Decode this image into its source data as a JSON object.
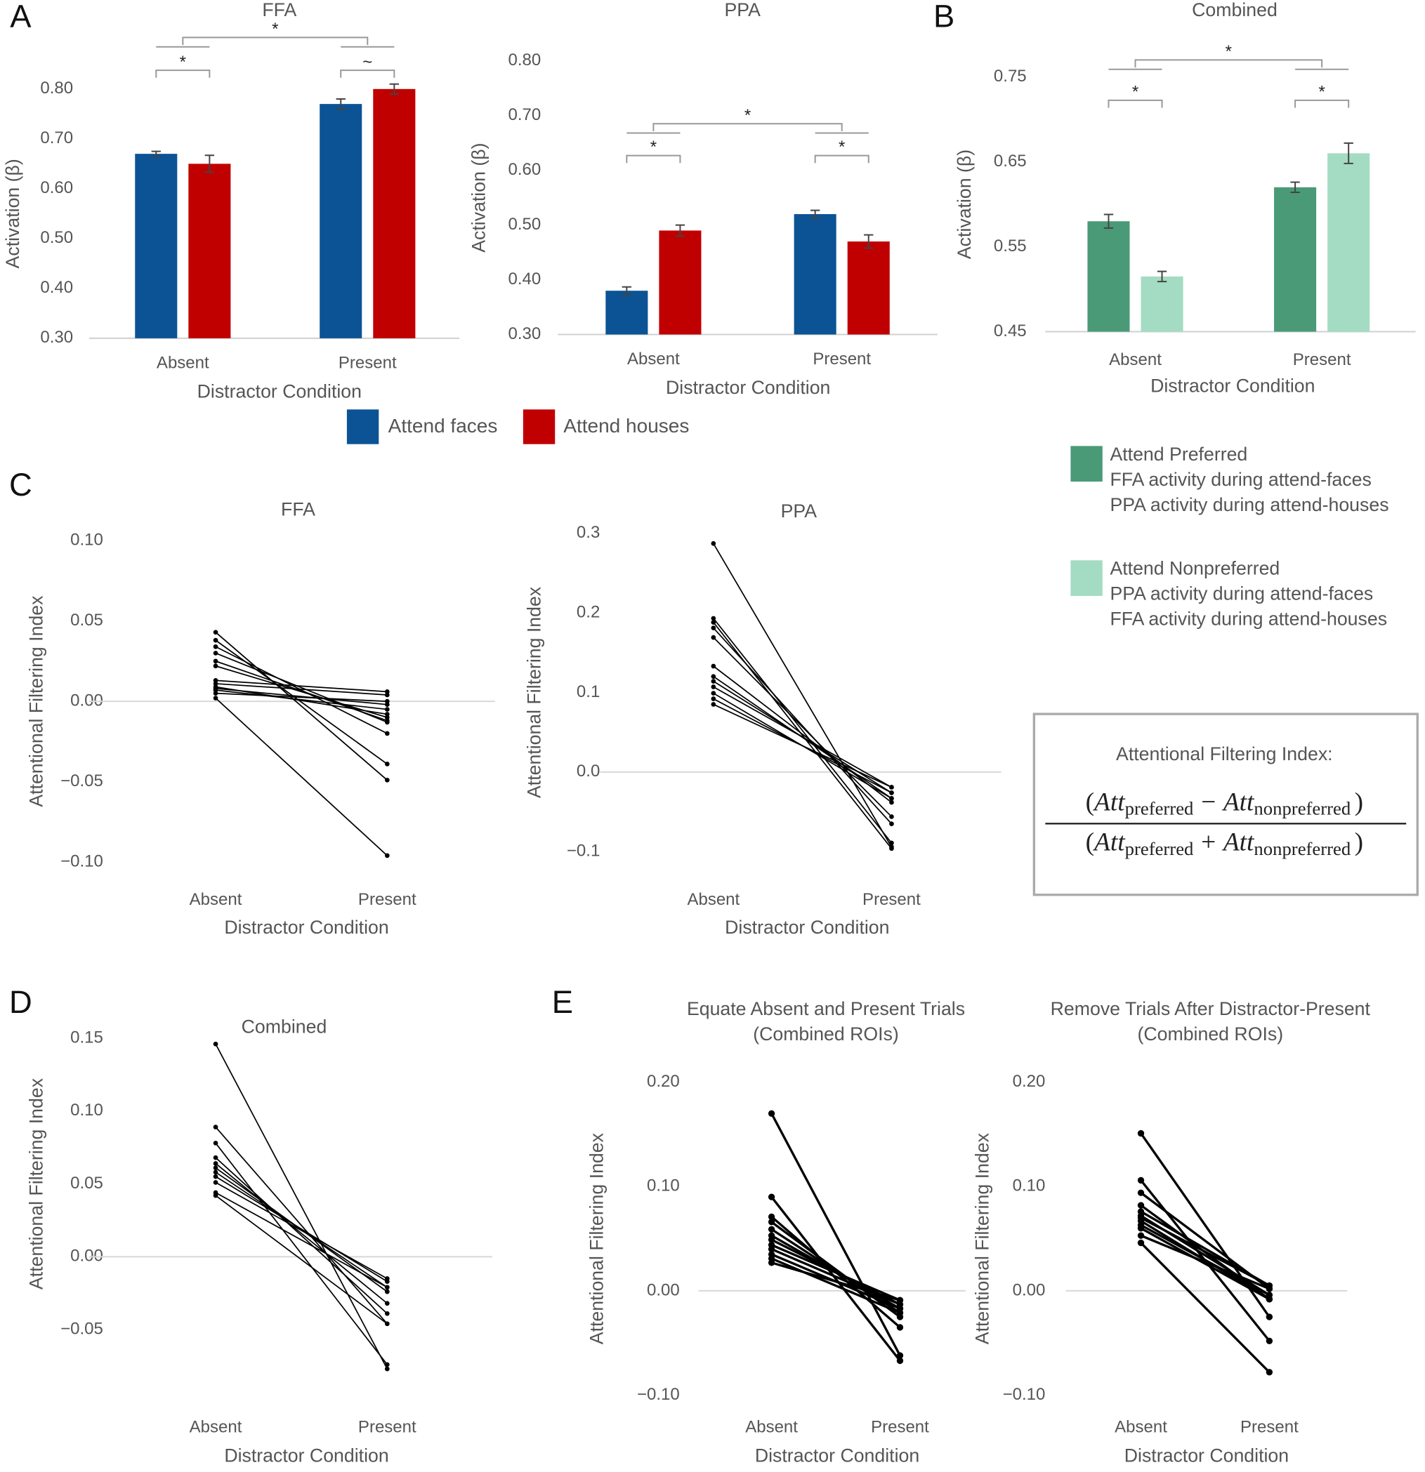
{
  "panel_labels": [
    "A",
    "B",
    "C",
    "D",
    "E"
  ],
  "chart_data": [
    {
      "type": "bar",
      "title": "FFA",
      "y_label": "Activation (β)",
      "x_label": "Distractor Condition",
      "categories": [
        "Absent",
        "Present"
      ],
      "series": [
        {
          "name": "Attend faces",
          "color": "#0b5394",
          "values": [
            0.67,
            0.77
          ],
          "errors": [
            0.005,
            0.01
          ]
        },
        {
          "name": "Attend houses",
          "color": "#c00000",
          "values": [
            0.65,
            0.8
          ],
          "errors": [
            0.017,
            0.01
          ]
        }
      ],
      "ylim": [
        0.3,
        0.8
      ],
      "yticks": [
        {
          "value": 0.3,
          "label": "0.30"
        },
        {
          "value": 0.4,
          "label": "0.40"
        },
        {
          "value": 0.5,
          "label": "0.50"
        },
        {
          "value": 0.6,
          "label": "0.60"
        },
        {
          "value": 0.7,
          "label": "0.70"
        },
        {
          "value": 0.8,
          "label": "0.80"
        }
      ],
      "annotations": [
        "*",
        "*",
        "~"
      ]
    },
    {
      "type": "bar",
      "title": "PPA",
      "y_label": "Activation (β)",
      "x_label": "Distractor Condition",
      "categories": [
        "Absent",
        "Present"
      ],
      "series": [
        {
          "color": "#0b5394",
          "values": [
            0.38,
            0.52
          ],
          "errors": [
            0.007,
            0.007
          ]
        },
        {
          "color": "#c00000",
          "values": [
            0.49,
            0.47
          ],
          "errors": [
            0.01,
            0.012
          ]
        }
      ],
      "ylim": [
        0.3,
        0.8
      ],
      "yticks": [
        {
          "value": 0.3,
          "label": "0.30"
        },
        {
          "value": 0.4,
          "label": "0.40"
        },
        {
          "value": 0.5,
          "label": "0.50"
        },
        {
          "value": 0.6,
          "label": "0.60"
        },
        {
          "value": 0.7,
          "label": "0.70"
        },
        {
          "value": 0.8,
          "label": "0.80"
        }
      ],
      "annotations": [
        "*",
        "*",
        "*"
      ]
    },
    {
      "type": "bar",
      "title": "Combined",
      "y_label": "Activation (β)",
      "x_label": "Distractor Condition",
      "categories": [
        "Absent",
        "Present"
      ],
      "series": [
        {
          "name": "Attend Preferred",
          "notes": [
            "FFA activity during attend-faces",
            "PPA activity during attend-houses"
          ],
          "color": "#4a9a78",
          "values": [
            0.58,
            0.62
          ],
          "errors": [
            0.008,
            0.006
          ]
        },
        {
          "name": "Attend Nonpreferred",
          "notes": [
            "PPA activity during attend-faces",
            "FFA activity during attend-houses"
          ],
          "color": "#a3dcc2",
          "values": [
            0.515,
            0.66
          ],
          "errors": [
            0.006,
            0.012
          ]
        }
      ],
      "ylim": [
        0.45,
        0.75
      ],
      "yticks": [
        {
          "value": 0.45,
          "label": "0.45"
        },
        {
          "value": 0.55,
          "label": "0.55"
        },
        {
          "value": 0.65,
          "label": "0.65"
        },
        {
          "value": 0.75,
          "label": "0.75"
        }
      ],
      "annotations": [
        "*",
        "*",
        "*"
      ]
    },
    {
      "type": "line",
      "title": "FFA",
      "y_label": "Attentional Filtering Index",
      "x_label": "Distractor Condition",
      "categories": [
        "Absent",
        "Present"
      ],
      "color": "#000000",
      "series": [
        {
          "values": [
            0.043,
            -0.049
          ]
        },
        {
          "values": [
            0.038,
            -0.039
          ]
        },
        {
          "values": [
            0.034,
            -0.02
          ]
        },
        {
          "values": [
            0.03,
            -0.013
          ]
        },
        {
          "values": [
            0.025,
            -0.012
          ]
        },
        {
          "values": [
            0.022,
            -0.01
          ]
        },
        {
          "values": [
            0.013,
            0.006
          ]
        },
        {
          "values": [
            0.011,
            0.004
          ]
        },
        {
          "values": [
            0.009,
            -0.008
          ]
        },
        {
          "values": [
            0.007,
            -0.005
          ]
        },
        {
          "values": [
            0.005,
            0.0
          ]
        },
        {
          "values": [
            0.008,
            -0.002
          ]
        },
        {
          "values": [
            0.002,
            -0.096
          ]
        }
      ],
      "ylim": [
        -0.1,
        0.1
      ],
      "yticks": [
        {
          "value": -0.1,
          "label": "−0.10"
        },
        {
          "value": -0.05,
          "label": "−0.05"
        },
        {
          "value": 0,
          "label": "0.00"
        },
        {
          "value": 0.05,
          "label": "0.05"
        },
        {
          "value": 0.1,
          "label": "0.10"
        }
      ],
      "zero_line": true
    },
    {
      "type": "line",
      "title": "PPA",
      "y_label": "Attentional Filtering Index",
      "x_label": "Distractor Condition",
      "categories": [
        "Absent",
        "Present"
      ],
      "color": "#000000",
      "series": [
        {
          "values": [
            0.287,
            -0.094
          ]
        },
        {
          "values": [
            0.193,
            -0.089
          ]
        },
        {
          "values": [
            0.188,
            -0.096
          ]
        },
        {
          "values": [
            0.181,
            -0.065
          ]
        },
        {
          "values": [
            0.169,
            -0.056
          ]
        },
        {
          "values": [
            0.133,
            -0.038
          ]
        },
        {
          "values": [
            0.12,
            -0.033
          ]
        },
        {
          "values": [
            0.114,
            -0.026
          ]
        },
        {
          "values": [
            0.107,
            -0.019
          ]
        },
        {
          "values": [
            0.099,
            -0.033
          ]
        },
        {
          "values": [
            0.092,
            -0.026
          ]
        },
        {
          "values": [
            0.085,
            -0.019
          ]
        }
      ],
      "ylim": [
        -0.1,
        0.3
      ],
      "yticks": [
        {
          "value": -0.1,
          "label": "−0.1"
        },
        {
          "value": 0,
          "label": "0.0"
        },
        0.1,
        0.2,
        0.3
      ],
      "zero_line": true
    },
    {
      "type": "line",
      "title": "Combined",
      "y_label": "Attentional Filtering Index",
      "x_label": "Distractor Condition",
      "categories": [
        "Absent",
        "Present"
      ],
      "color": "#000000",
      "series": [
        {
          "values": [
            0.146,
            -0.077
          ]
        },
        {
          "values": [
            0.089,
            -0.046
          ]
        },
        {
          "values": [
            0.078,
            -0.074
          ]
        },
        {
          "values": [
            0.068,
            -0.039
          ]
        },
        {
          "values": [
            0.064,
            -0.032
          ]
        },
        {
          "values": [
            0.061,
            -0.024
          ]
        },
        {
          "values": [
            0.058,
            -0.021
          ]
        },
        {
          "values": [
            0.055,
            -0.017
          ]
        },
        {
          "values": [
            0.051,
            -0.015
          ]
        },
        {
          "values": [
            0.044,
            -0.021
          ]
        },
        {
          "values": [
            0.042,
            -0.046
          ]
        }
      ],
      "ylim": [
        -0.05,
        0.15
      ],
      "yticks": [
        {
          "value": -0.05,
          "label": "−0.05"
        },
        {
          "value": 0,
          "label": "0.00"
        },
        {
          "value": 0.05,
          "label": "0.05"
        },
        {
          "value": 0.1,
          "label": "0.10"
        },
        {
          "value": 0.15,
          "label": "0.15"
        }
      ],
      "zero_line": true
    },
    {
      "type": "line",
      "title": [
        "Equate Absent and Present Trials",
        "(Combined ROIs)"
      ],
      "y_label": "Attentional Filtering Index",
      "x_label": "Distractor Condition",
      "categories": [
        "Absent",
        "Present"
      ],
      "color": "#000000",
      "series": [
        {
          "values": [
            0.17,
            -0.062
          ]
        },
        {
          "values": [
            0.09,
            -0.067
          ]
        },
        {
          "values": [
            0.071,
            -0.035
          ]
        },
        {
          "values": [
            0.066,
            -0.025
          ]
        },
        {
          "values": [
            0.059,
            -0.021
          ]
        },
        {
          "values": [
            0.053,
            -0.017
          ]
        },
        {
          "values": [
            0.049,
            -0.013
          ]
        },
        {
          "values": [
            0.044,
            -0.009
          ]
        },
        {
          "values": [
            0.04,
            -0.013
          ]
        },
        {
          "values": [
            0.035,
            -0.017
          ]
        },
        {
          "values": [
            0.031,
            -0.021
          ]
        },
        {
          "values": [
            0.027,
            -0.009
          ]
        }
      ],
      "ylim": [
        -0.1,
        0.2
      ],
      "yticks": [
        {
          "value": -0.1,
          "label": "−0.10"
        },
        {
          "value": 0,
          "label": "0.00"
        },
        {
          "value": 0.1,
          "label": "0.10"
        },
        {
          "value": 0.2,
          "label": "0.20"
        }
      ],
      "zero_line": true
    },
    {
      "type": "line",
      "title": [
        "Remove Trials After Distractor-Present",
        "(Combined ROIs)"
      ],
      "y_label": "Attentional Filtering Index",
      "x_label": "Distractor Condition",
      "categories": [
        "Absent",
        "Present"
      ],
      "color": "#000000",
      "series": [
        {
          "values": [
            0.151,
            -0.025
          ]
        },
        {
          "values": [
            0.106,
            -0.048
          ]
        },
        {
          "values": [
            0.094,
            0.002
          ]
        },
        {
          "values": [
            0.082,
            -0.008
          ]
        },
        {
          "values": [
            0.076,
            0.005
          ]
        },
        {
          "values": [
            0.072,
            -0.004
          ]
        },
        {
          "values": [
            0.067,
            -0.008
          ]
        },
        {
          "values": [
            0.063,
            -0.004
          ]
        },
        {
          "values": [
            0.053,
            0.002
          ]
        },
        {
          "values": [
            0.046,
            -0.078
          ]
        },
        {
          "values": [
            0.07,
            0.005
          ]
        },
        {
          "values": [
            0.06,
            -0.008
          ]
        }
      ],
      "ylim": [
        -0.1,
        0.2
      ],
      "yticks": [
        {
          "value": -0.1,
          "label": "−0.10"
        },
        {
          "value": 0,
          "label": "0.00"
        },
        {
          "value": 0.1,
          "label": "0.10"
        },
        {
          "value": 0.2,
          "label": "0.20"
        }
      ],
      "zero_line": true
    }
  ],
  "formula": {
    "title": "Attentional Filtering Index:",
    "open": "(",
    "close": ")",
    "term": "Att",
    "sub_a": "preferred",
    "sub_b": "nonpreferred",
    "operator_top": "−",
    "operator_bottom": "+"
  }
}
